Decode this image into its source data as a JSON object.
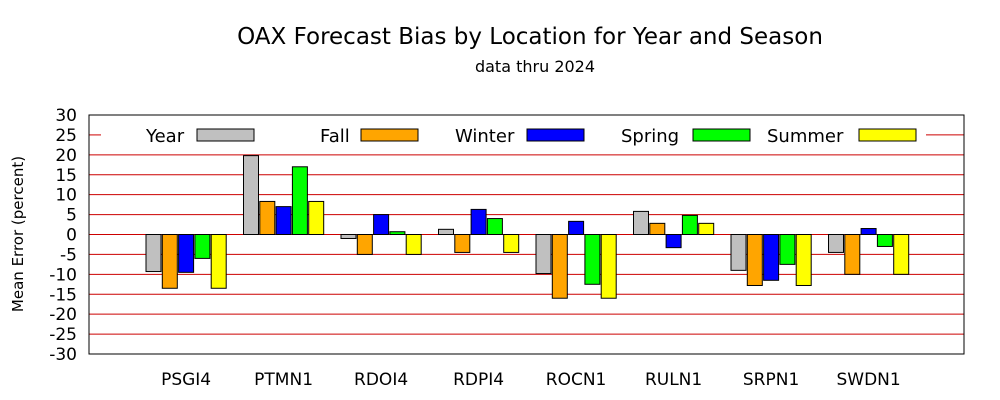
{
  "chart_data": {
    "type": "bar",
    "title": "OAX Forecast Bias by Location for Year and Season",
    "subtitle": "data thru 2024",
    "ylabel": "Mean Error (percent)",
    "xlabel": "",
    "ylim": [
      -30,
      30
    ],
    "yticks": [
      30,
      25,
      20,
      15,
      10,
      5,
      0,
      -5,
      -10,
      -15,
      -20,
      -25,
      -30
    ],
    "grid": true,
    "grid_color": "#cc0000",
    "legend_position": "top",
    "categories": [
      "PSGI4",
      "PTMN1",
      "RDOI4",
      "RDPI4",
      "ROCN1",
      "RULN1",
      "SRPN1",
      "SWDN1"
    ],
    "series": [
      {
        "name": "Year",
        "color": "#c0c0c0",
        "values": [
          -9.3,
          19.8,
          -1.0,
          1.3,
          -9.8,
          5.8,
          -9.0,
          -4.5
        ]
      },
      {
        "name": "Fall",
        "color": "#ffa500",
        "values": [
          -13.5,
          8.3,
          -5.0,
          -4.5,
          -16.0,
          2.8,
          -12.8,
          -10.0
        ]
      },
      {
        "name": "Winter",
        "color": "#0000ff",
        "values": [
          -9.5,
          7.0,
          5.0,
          6.3,
          3.3,
          -3.3,
          -11.5,
          1.5
        ]
      },
      {
        "name": "Spring",
        "color": "#00ff00",
        "values": [
          -6.0,
          17.0,
          0.7,
          4.0,
          -12.5,
          4.8,
          -7.5,
          -3.0
        ]
      },
      {
        "name": "Summer",
        "color": "#ffff00",
        "values": [
          -13.5,
          8.3,
          -5.0,
          -4.5,
          -16.0,
          2.8,
          -12.8,
          -10.0
        ]
      }
    ]
  }
}
